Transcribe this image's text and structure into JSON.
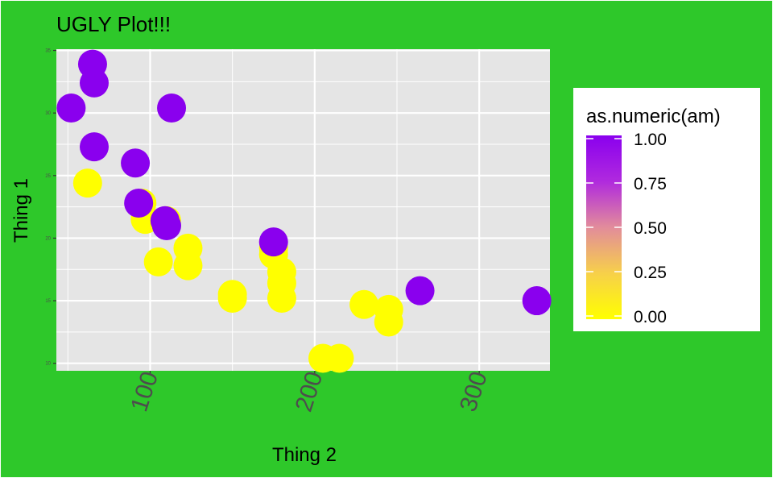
{
  "chart_data": {
    "type": "scatter",
    "title": "UGLY Plot!!!",
    "xlabel": "Thing 2",
    "ylabel": "Thing 1",
    "xlim": [
      43,
      343
    ],
    "ylim": [
      9.4,
      35.1
    ],
    "x_ticks": [
      100,
      200,
      300
    ],
    "x_tick_labels": [
      "100",
      "200",
      "300"
    ],
    "y_ticks": [
      10,
      15,
      20,
      25,
      30,
      35
    ],
    "y_tick_labels": [
      "10",
      "15",
      "20",
      "25",
      "30",
      "35"
    ],
    "grid": true,
    "legend": {
      "title": "as.numeric(am)",
      "placement": "right",
      "breaks": [
        1.0,
        0.75,
        0.5,
        0.25,
        0.0
      ],
      "break_labels": [
        "1.00",
        "0.75",
        "0.50",
        "0.25",
        "0.00"
      ],
      "low_color": "#FFFF00",
      "high_color": "#8A00EE"
    },
    "colors": {
      "background": "#2EC82A",
      "panel": "#E5E5E5",
      "grid": "#FFFFFF"
    },
    "series": [
      {
        "color_by": "am",
        "points": [
          {
            "x": 110,
            "y": 21.0,
            "c": 1
          },
          {
            "x": 110,
            "y": 21.0,
            "c": 1
          },
          {
            "x": 93,
            "y": 22.8,
            "c": 1
          },
          {
            "x": 110,
            "y": 21.4,
            "c": 0
          },
          {
            "x": 175,
            "y": 18.7,
            "c": 0
          },
          {
            "x": 105,
            "y": 18.1,
            "c": 0
          },
          {
            "x": 245,
            "y": 14.3,
            "c": 0
          },
          {
            "x": 62,
            "y": 24.4,
            "c": 0
          },
          {
            "x": 95,
            "y": 22.8,
            "c": 0
          },
          {
            "x": 123,
            "y": 19.2,
            "c": 0
          },
          {
            "x": 123,
            "y": 17.8,
            "c": 0
          },
          {
            "x": 180,
            "y": 16.4,
            "c": 0
          },
          {
            "x": 180,
            "y": 17.3,
            "c": 0
          },
          {
            "x": 180,
            "y": 15.2,
            "c": 0
          },
          {
            "x": 205,
            "y": 10.4,
            "c": 0
          },
          {
            "x": 215,
            "y": 10.4,
            "c": 0
          },
          {
            "x": 230,
            "y": 14.7,
            "c": 0
          },
          {
            "x": 66,
            "y": 32.4,
            "c": 1
          },
          {
            "x": 52,
            "y": 30.4,
            "c": 1
          },
          {
            "x": 65,
            "y": 33.9,
            "c": 1
          },
          {
            "x": 97,
            "y": 21.5,
            "c": 0
          },
          {
            "x": 150,
            "y": 15.5,
            "c": 0
          },
          {
            "x": 150,
            "y": 15.2,
            "c": 0
          },
          {
            "x": 245,
            "y": 13.3,
            "c": 0
          },
          {
            "x": 175,
            "y": 19.2,
            "c": 0
          },
          {
            "x": 66,
            "y": 27.3,
            "c": 1
          },
          {
            "x": 91,
            "y": 26.0,
            "c": 1
          },
          {
            "x": 113,
            "y": 30.4,
            "c": 1
          },
          {
            "x": 264,
            "y": 15.8,
            "c": 1
          },
          {
            "x": 175,
            "y": 19.7,
            "c": 1
          },
          {
            "x": 335,
            "y": 15.0,
            "c": 1
          },
          {
            "x": 109,
            "y": 21.4,
            "c": 1
          }
        ]
      }
    ]
  }
}
